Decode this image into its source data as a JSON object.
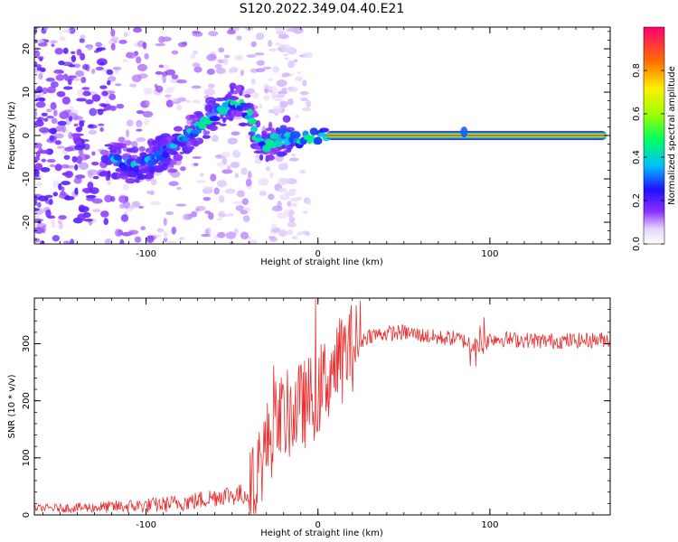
{
  "title": "S120.2022.349.04.40.E21",
  "colorbar": {
    "label": "Normalized spectral amplitude",
    "ticks": [
      0.0,
      0.2,
      0.4,
      0.6,
      0.8
    ],
    "tick_labels": [
      "0.0",
      "0.2",
      "0.4",
      "0.6",
      "0.8"
    ],
    "range": [
      0,
      1
    ]
  },
  "chart_data": [
    {
      "type": "heatmap",
      "title": "",
      "xlabel": "Height of straight line (km)",
      "ylabel": "Frequency (Hz)",
      "xlim": [
        -165,
        170
      ],
      "ylim": [
        -25,
        25
      ],
      "xticks": [
        -100,
        0,
        100
      ],
      "xtick_labels": [
        "-100",
        "0",
        "100"
      ],
      "yticks": [
        -20,
        -10,
        0,
        10,
        20
      ],
      "ytick_labels": [
        "-20",
        "-10",
        "0",
        "10",
        "20"
      ],
      "ridge": {
        "x": [
          -120,
          -110,
          -100,
          -90,
          -80,
          -70,
          -60,
          -50,
          -45,
          -40,
          -35,
          -30,
          -20,
          -10,
          0,
          10,
          20,
          40,
          60,
          80,
          85,
          90,
          100,
          120,
          140,
          168
        ],
        "y": [
          -5,
          -7,
          -6,
          -4,
          -1,
          2,
          5,
          8,
          7,
          5,
          -1,
          -2,
          0,
          -1,
          0,
          0,
          0,
          0,
          0,
          0,
          1,
          0,
          0,
          0,
          0,
          0
        ]
      }
    },
    {
      "type": "line",
      "title": "",
      "xlabel": "Height of straight line (km)",
      "ylabel": "SNR (10 * v/v)",
      "xlim": [
        -165,
        170
      ],
      "ylim": [
        0,
        380
      ],
      "xticks": [
        -100,
        0,
        100
      ],
      "xtick_labels": [
        "-100",
        "0",
        "100"
      ],
      "yticks": [
        0,
        100,
        200,
        300
      ],
      "ytick_labels": [
        "0",
        "100",
        "200",
        "300"
      ],
      "color": "#e83030",
      "x": [
        -165,
        -150,
        -130,
        -110,
        -90,
        -70,
        -55,
        -45,
        -38,
        -35,
        -30,
        -25,
        -20,
        -15,
        -10,
        -5,
        0,
        5,
        10,
        20,
        30,
        40,
        50,
        60,
        70,
        80,
        90,
        95,
        100,
        110,
        130,
        150,
        170
      ],
      "y": [
        12,
        12,
        13,
        15,
        18,
        25,
        35,
        35,
        40,
        80,
        120,
        160,
        170,
        180,
        190,
        200,
        215,
        240,
        260,
        295,
        315,
        318,
        320,
        315,
        310,
        310,
        300,
        290,
        310,
        308,
        305,
        305,
        308
      ]
    }
  ]
}
